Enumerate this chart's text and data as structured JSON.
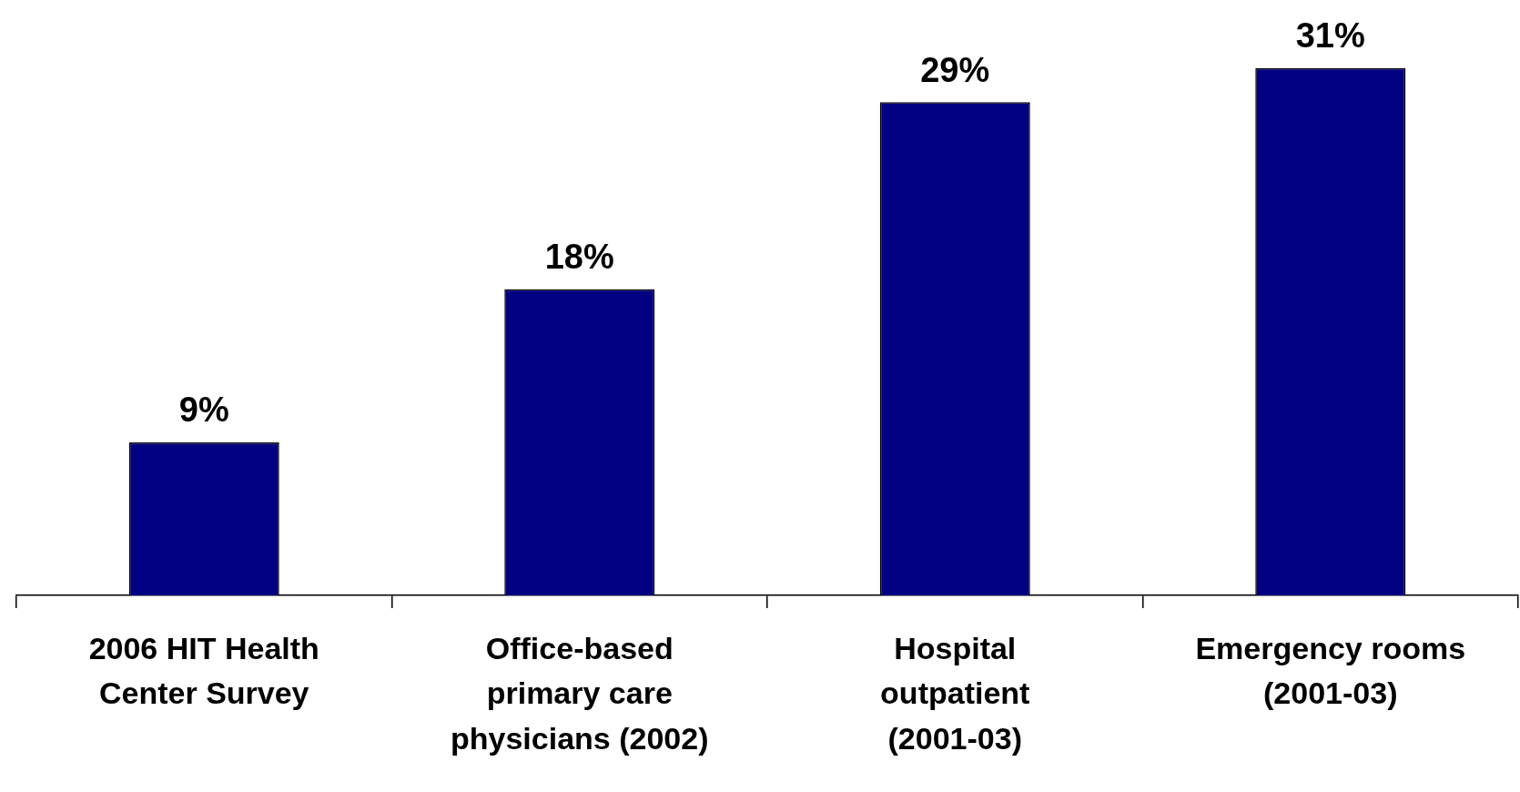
{
  "chart_data": {
    "type": "bar",
    "categories": [
      "2006 HIT Health Center Survey",
      "Office-based primary care physicians (2002)",
      "Hospital outpatient (2001-03)",
      "Emergency rooms (2001-03)"
    ],
    "values": [
      9,
      18,
      29,
      31
    ],
    "value_labels": [
      "9%",
      "18%",
      "29%",
      "31%"
    ],
    "color": "#000080",
    "grid": false,
    "legend": false
  }
}
